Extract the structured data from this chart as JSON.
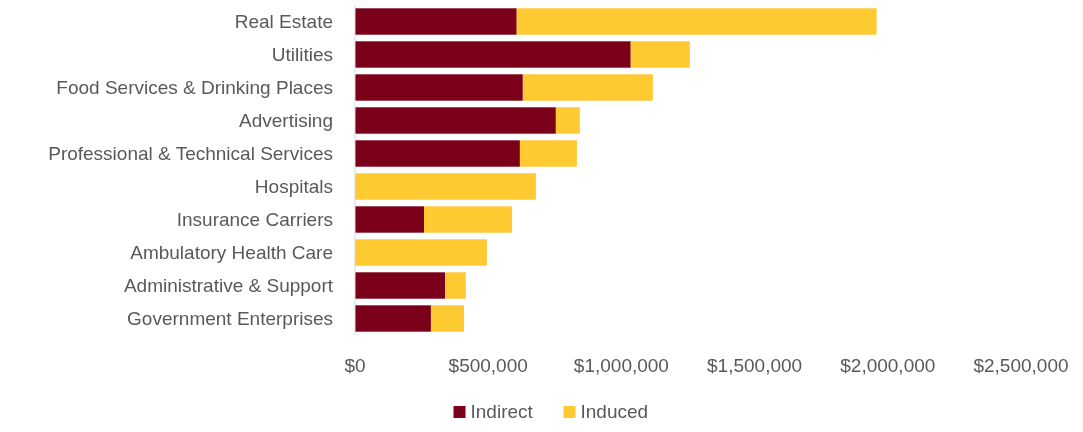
{
  "chart_data": {
    "type": "bar",
    "orientation": "horizontal",
    "stacked": true,
    "categories": [
      "Real Estate",
      "Utilities",
      "Food Services & Drinking Places",
      "Advertising",
      "Professional & Technical Services",
      "Hospitals",
      "Insurance Carriers",
      "Ambulatory Health Care",
      "Administrative & Support",
      "Government Enterprises"
    ],
    "series": [
      {
        "name": "Indirect",
        "color": "#7b0019",
        "values": [
          607000,
          1035000,
          630000,
          754000,
          619000,
          0,
          259000,
          0,
          338000,
          285000
        ]
      },
      {
        "name": "Induced",
        "color": "#ffc931",
        "values": [
          1351000,
          222000,
          488000,
          90000,
          214000,
          679000,
          330000,
          495000,
          78000,
          124000
        ]
      }
    ],
    "xlim": [
      0,
      2500000
    ],
    "xticks": [
      {
        "value": 0,
        "label": "$0"
      },
      {
        "value": 500000,
        "label": "$500,000"
      },
      {
        "value": 1000000,
        "label": "$1,000,000"
      },
      {
        "value": 1500000,
        "label": "$1,500,000"
      },
      {
        "value": 2000000,
        "label": "$2,000,000"
      },
      {
        "value": 2500000,
        "label": "$2,500,000"
      }
    ],
    "grid": false,
    "legend": "bottom"
  }
}
